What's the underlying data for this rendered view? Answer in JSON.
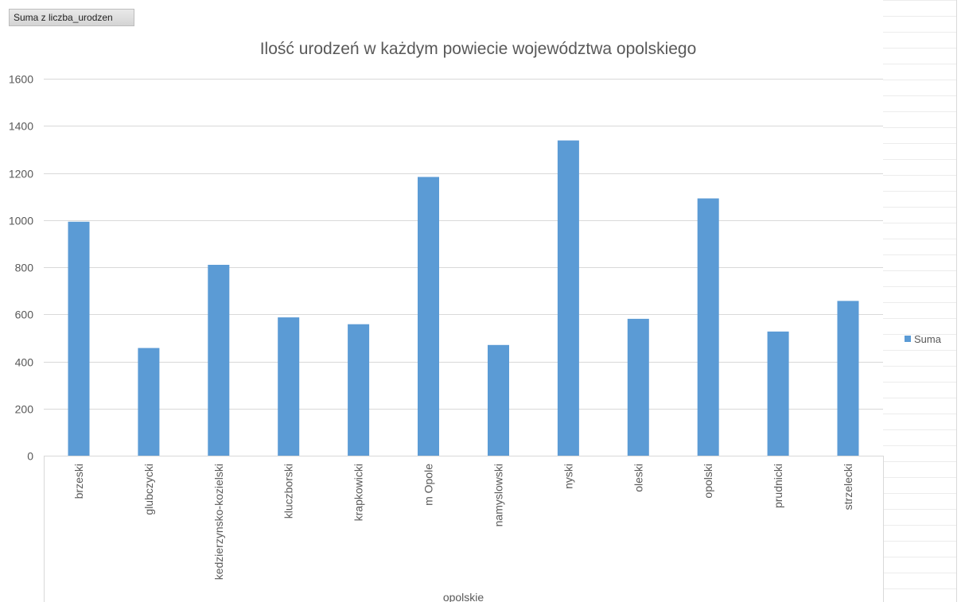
{
  "field_button": {
    "label": "Suma z liczba_urodzen"
  },
  "chart_data": {
    "type": "bar",
    "title": "Ilość urodzeń w każdym powiecie województwa opolskiego",
    "categories": [
      "brzeski",
      "glubczycki",
      "kedzierzynsko-kozielski",
      "kluczborski",
      "krapkowicki",
      "m Opole",
      "namyslowski",
      "nyski",
      "oleski",
      "opolski",
      "prudnicki",
      "strzelecki"
    ],
    "group_label": "opolskie",
    "series": [
      {
        "name": "Suma",
        "color": "#5b9bd5",
        "values": [
          993,
          457,
          810,
          587,
          558,
          1183,
          470,
          1338,
          581,
          1092,
          527,
          657
        ]
      }
    ],
    "ylim": [
      0,
      1600
    ],
    "yticks": [
      0,
      200,
      400,
      600,
      800,
      1000,
      1200,
      1400,
      1600
    ],
    "grid": true,
    "legend_position": "right"
  }
}
